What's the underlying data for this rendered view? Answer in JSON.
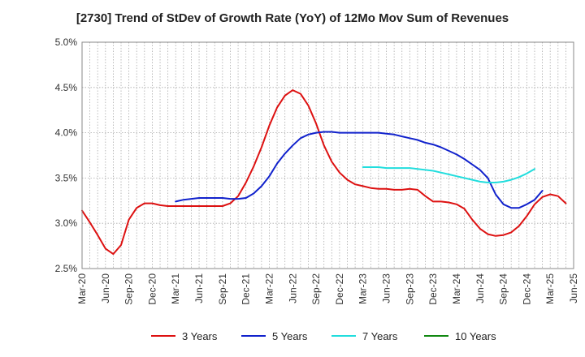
{
  "chart_data": {
    "type": "line",
    "title": "[2730]  Trend of StDev of Growth Rate (YoY) of 12Mo Mov Sum of Revenues",
    "xlabel": "",
    "ylabel": "",
    "ylim": [
      2.5,
      5.0
    ],
    "y_ticks": [
      2.5,
      3.0,
      3.5,
      4.0,
      4.5,
      5.0
    ],
    "y_tick_labels": [
      "2.5%",
      "3.0%",
      "3.5%",
      "4.0%",
      "4.5%",
      "5.0%"
    ],
    "x_tick_labels": [
      "Mar-20",
      "Jun-20",
      "Sep-20",
      "Dec-20",
      "Mar-21",
      "Jun-21",
      "Sep-21",
      "Dec-21",
      "Mar-22",
      "Jun-22",
      "Sep-22",
      "Dec-22",
      "Mar-23",
      "Jun-23",
      "Sep-23",
      "Dec-23",
      "Mar-24",
      "Jun-24",
      "Sep-24",
      "Dec-24",
      "Mar-25",
      "Jun-25"
    ],
    "grid": true,
    "legend_position": "bottom",
    "series": [
      {
        "name": "3 Years",
        "color": "#dd1111",
        "start_index": 0,
        "values": [
          3.14,
          3.01,
          2.87,
          2.72,
          2.66,
          2.76,
          3.04,
          3.17,
          3.22,
          3.22,
          3.2,
          3.19,
          3.19,
          3.19,
          3.19,
          3.19,
          3.19,
          3.19,
          3.19,
          3.22,
          3.3,
          3.45,
          3.63,
          3.84,
          4.08,
          4.28,
          4.41,
          4.47,
          4.43,
          4.3,
          4.1,
          3.86,
          3.68,
          3.56,
          3.48,
          3.43,
          3.41,
          3.39,
          3.38,
          3.38,
          3.37,
          3.37,
          3.38,
          3.37,
          3.3,
          3.24,
          3.24,
          3.23,
          3.21,
          3.16,
          3.04,
          2.94,
          2.88,
          2.86,
          2.87,
          2.9,
          2.97,
          3.08,
          3.21,
          3.29,
          3.32,
          3.3,
          3.22
        ]
      },
      {
        "name": "5 Years",
        "color": "#1122cc",
        "start_index": 12,
        "values": [
          3.24,
          3.26,
          3.27,
          3.28,
          3.28,
          3.28,
          3.28,
          3.27,
          3.27,
          3.28,
          3.33,
          3.41,
          3.52,
          3.66,
          3.77,
          3.86,
          3.94,
          3.98,
          4.0,
          4.01,
          4.01,
          4.0,
          4.0,
          4.0,
          4.0,
          4.0,
          4.0,
          3.99,
          3.98,
          3.96,
          3.94,
          3.92,
          3.89,
          3.87,
          3.84,
          3.8,
          3.76,
          3.71,
          3.65,
          3.59,
          3.5,
          3.32,
          3.21,
          3.17,
          3.17,
          3.21,
          3.26,
          3.36
        ]
      },
      {
        "name": "7 Years",
        "color": "#22dddd",
        "start_index": 36,
        "values": [
          3.62,
          3.62,
          3.62,
          3.61,
          3.61,
          3.61,
          3.61,
          3.6,
          3.59,
          3.58,
          3.56,
          3.54,
          3.52,
          3.5,
          3.48,
          3.46,
          3.45,
          3.45,
          3.46,
          3.48,
          3.51,
          3.55,
          3.6
        ]
      },
      {
        "name": "10 Years",
        "color": "#118811",
        "start_index": 0,
        "values": []
      }
    ]
  }
}
